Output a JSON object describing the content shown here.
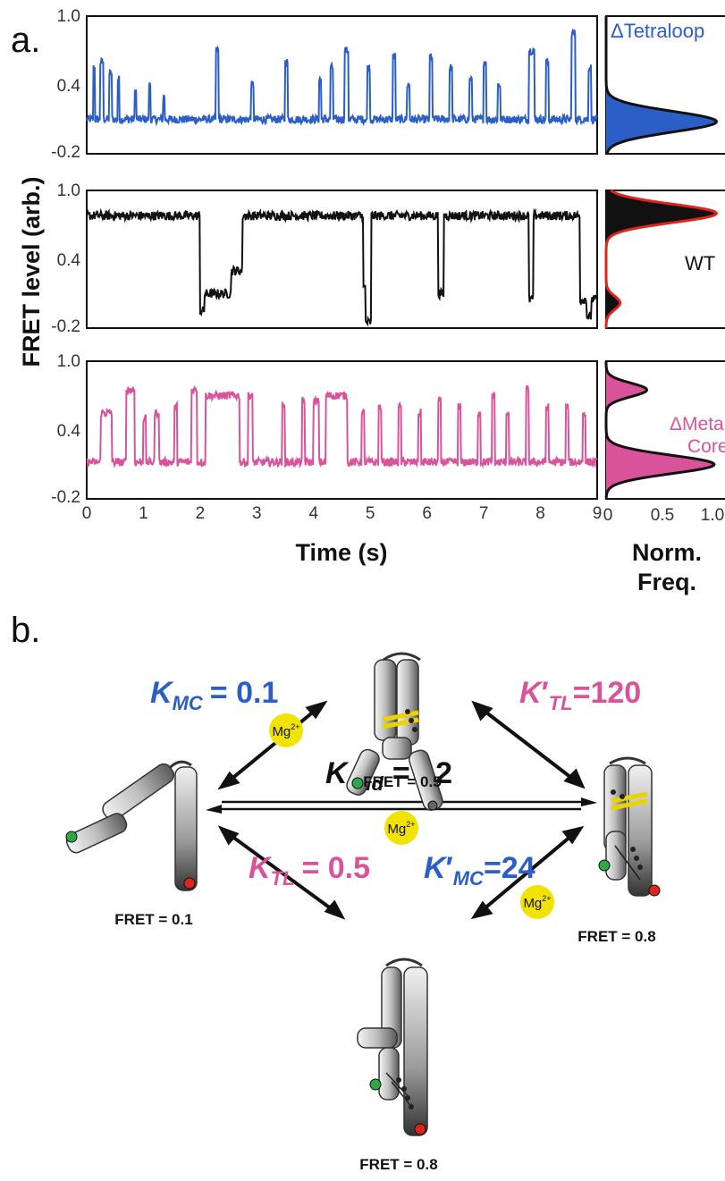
{
  "panel_a_label": "a.",
  "panel_b_label": "b.",
  "colors": {
    "tetraloop": "#2b5fc7",
    "wt": "#111111",
    "wt_fit": "#e0241b",
    "metalcore": "#d9539b",
    "mg": "#f2e200",
    "green_dye": "#2fa64a",
    "red_dye": "#e0241b"
  },
  "chart_data": [
    {
      "type": "line",
      "panel": "a",
      "xlabel": "Time (s)",
      "ylabel": "FRET level (arb.)",
      "xlim": [
        0,
        9
      ],
      "ylim": [
        -0.2,
        1.0
      ],
      "x_ticks": [
        "0",
        "1",
        "2",
        "3",
        "4",
        "5",
        "6",
        "7",
        "8",
        "9"
      ],
      "y_ticks": [
        "-0.2",
        "0.4",
        "1.0"
      ],
      "series": [
        {
          "name": "ΔTetraloop",
          "baseline": 0.1,
          "noise": 0.035,
          "segments": [
            [
              0,
              0.1
            ],
            [
              0.12,
              0.55
            ],
            [
              0.15,
              0.1
            ],
            [
              0.24,
              0.6
            ],
            [
              0.3,
              0.1
            ],
            [
              0.4,
              0.5
            ],
            [
              0.45,
              0.1
            ],
            [
              0.55,
              0.45
            ],
            [
              0.58,
              0.1
            ],
            [
              0.85,
              0.35
            ],
            [
              0.88,
              0.1
            ],
            [
              1.1,
              0.4
            ],
            [
              1.13,
              0.1
            ],
            [
              1.35,
              0.3
            ],
            [
              1.38,
              0.1
            ],
            [
              2.28,
              0.7
            ],
            [
              2.33,
              0.1
            ],
            [
              2.9,
              0.4
            ],
            [
              2.95,
              0.1
            ],
            [
              3.5,
              0.6
            ],
            [
              3.55,
              0.1
            ],
            [
              4.1,
              0.45
            ],
            [
              4.14,
              0.1
            ],
            [
              4.3,
              0.55
            ],
            [
              4.35,
              0.1
            ],
            [
              4.55,
              0.7
            ],
            [
              4.62,
              0.1
            ],
            [
              4.95,
              0.55
            ],
            [
              5.0,
              0.1
            ],
            [
              5.4,
              0.65
            ],
            [
              5.45,
              0.1
            ],
            [
              5.65,
              0.4
            ],
            [
              5.7,
              0.1
            ],
            [
              6.05,
              0.65
            ],
            [
              6.1,
              0.1
            ],
            [
              6.4,
              0.55
            ],
            [
              6.45,
              0.1
            ],
            [
              6.75,
              0.45
            ],
            [
              6.8,
              0.1
            ],
            [
              7.0,
              0.6
            ],
            [
              7.05,
              0.1
            ],
            [
              7.25,
              0.4
            ],
            [
              7.3,
              0.1
            ],
            [
              7.8,
              0.7
            ],
            [
              7.9,
              0.1
            ],
            [
              8.1,
              0.6
            ],
            [
              8.15,
              0.1
            ],
            [
              8.55,
              0.85
            ],
            [
              8.62,
              0.1
            ],
            [
              8.85,
              0.55
            ],
            [
              8.9,
              0.1
            ]
          ]
        },
        {
          "name": "WT",
          "baseline": 0.78,
          "noise": 0.04,
          "segments": [
            [
              0,
              0.78
            ],
            [
              2.0,
              -0.05
            ],
            [
              2.08,
              0.1
            ],
            [
              2.55,
              0.3
            ],
            [
              2.75,
              0.78
            ],
            [
              4.88,
              0.15
            ],
            [
              4.92,
              -0.15
            ],
            [
              5.02,
              0.78
            ],
            [
              6.2,
              0.1
            ],
            [
              6.3,
              0.78
            ],
            [
              7.8,
              0.05
            ],
            [
              7.88,
              0.78
            ],
            [
              8.7,
              0.05
            ],
            [
              8.82,
              -0.1
            ],
            [
              8.9,
              0.05
            ]
          ]
        },
        {
          "name": "ΔMetal Core",
          "baseline": 0.12,
          "noise": 0.035,
          "segments": [
            [
              0,
              0.12
            ],
            [
              0.25,
              0.55
            ],
            [
              0.45,
              0.12
            ],
            [
              0.7,
              0.75
            ],
            [
              0.85,
              0.12
            ],
            [
              1.0,
              0.5
            ],
            [
              1.05,
              0.12
            ],
            [
              1.2,
              0.55
            ],
            [
              1.28,
              0.12
            ],
            [
              1.55,
              0.6
            ],
            [
              1.6,
              0.12
            ],
            [
              1.85,
              0.75
            ],
            [
              1.95,
              0.12
            ],
            [
              2.1,
              0.7
            ],
            [
              2.7,
              0.12
            ],
            [
              2.85,
              0.7
            ],
            [
              2.93,
              0.12
            ],
            [
              3.45,
              0.6
            ],
            [
              3.5,
              0.12
            ],
            [
              3.8,
              0.65
            ],
            [
              3.85,
              0.12
            ],
            [
              4.0,
              0.65
            ],
            [
              4.1,
              0.12
            ],
            [
              4.22,
              0.7
            ],
            [
              4.6,
              0.12
            ],
            [
              4.85,
              0.55
            ],
            [
              4.9,
              0.12
            ],
            [
              5.15,
              0.6
            ],
            [
              5.2,
              0.12
            ],
            [
              5.5,
              0.6
            ],
            [
              5.55,
              0.12
            ],
            [
              5.85,
              0.55
            ],
            [
              5.9,
              0.12
            ],
            [
              6.2,
              0.65
            ],
            [
              6.25,
              0.12
            ],
            [
              6.55,
              0.6
            ],
            [
              6.6,
              0.12
            ],
            [
              6.9,
              0.55
            ],
            [
              6.95,
              0.12
            ],
            [
              7.15,
              0.7
            ],
            [
              7.2,
              0.12
            ],
            [
              7.4,
              0.55
            ],
            [
              7.45,
              0.12
            ],
            [
              7.75,
              0.75
            ],
            [
              7.8,
              0.12
            ],
            [
              8.1,
              0.6
            ],
            [
              8.15,
              0.12
            ],
            [
              8.45,
              0.6
            ],
            [
              8.5,
              0.12
            ],
            [
              8.75,
              0.55
            ],
            [
              8.8,
              0.12
            ]
          ]
        }
      ]
    },
    {
      "type": "area",
      "panel": "a",
      "xlabel": "Norm. Freq.",
      "x_ticks": [
        "0",
        "0.5",
        "1.0"
      ],
      "xlim": [
        0,
        1.0
      ],
      "ylim": [
        -0.2,
        1.0
      ],
      "series": [
        {
          "name": "ΔTetraloop",
          "peaks": [
            {
              "center": 0.08,
              "width": 0.09,
              "height": 0.95
            }
          ]
        },
        {
          "name": "WT",
          "peaks": [
            {
              "center": 0.8,
              "width": 0.08,
              "height": 0.95
            },
            {
              "center": 0.02,
              "width": 0.06,
              "height": 0.12
            }
          ]
        },
        {
          "name": "ΔMetal Core",
          "peaks": [
            {
              "center": 0.1,
              "width": 0.08,
              "height": 0.93
            },
            {
              "center": 0.75,
              "width": 0.06,
              "height": 0.35
            }
          ]
        }
      ]
    }
  ],
  "panel_a": {
    "ylabel": "FRET level (arb.)",
    "xlabel": "Time (s)",
    "hist_xlabel_line1": "Norm.",
    "hist_xlabel_line2": "Freq.",
    "y_ticks": [
      "1.0",
      "0.4",
      "-0.2"
    ],
    "x_ticks": [
      "0",
      "1",
      "2",
      "3",
      "4",
      "5",
      "6",
      "7",
      "8",
      "9"
    ],
    "hist_x_ticks": [
      "0",
      "0.5",
      "1.0"
    ],
    "labels": {
      "tetraloop": "ΔTetraloop",
      "wt": "WT",
      "metal_line1": "ΔMetal",
      "metal_line2": "Core"
    }
  },
  "panel_b": {
    "mg_base": "Mg",
    "mg_sup": "2+",
    "fret_top": "FRET = 0.5",
    "fret_left": "FRET = 0.1",
    "fret_right": "FRET = 0.8",
    "fret_bottom": "FRET = 0.8",
    "k_mc": {
      "symbol": "K",
      "sub": "MC",
      "value": "= 0.1"
    },
    "k_tl_prime": {
      "symbol": "K",
      "prime": "′",
      "sub": "TL",
      "value": "=120"
    },
    "k_fold": {
      "symbol": "K",
      "sub": "fold",
      "value": "= 12"
    },
    "k_tl": {
      "symbol": "K",
      "sub": "TL",
      "value": "= 0.5"
    },
    "k_mc_prime": {
      "symbol": "K",
      "prime": "′",
      "sub": "MC",
      "value": "=24"
    }
  }
}
